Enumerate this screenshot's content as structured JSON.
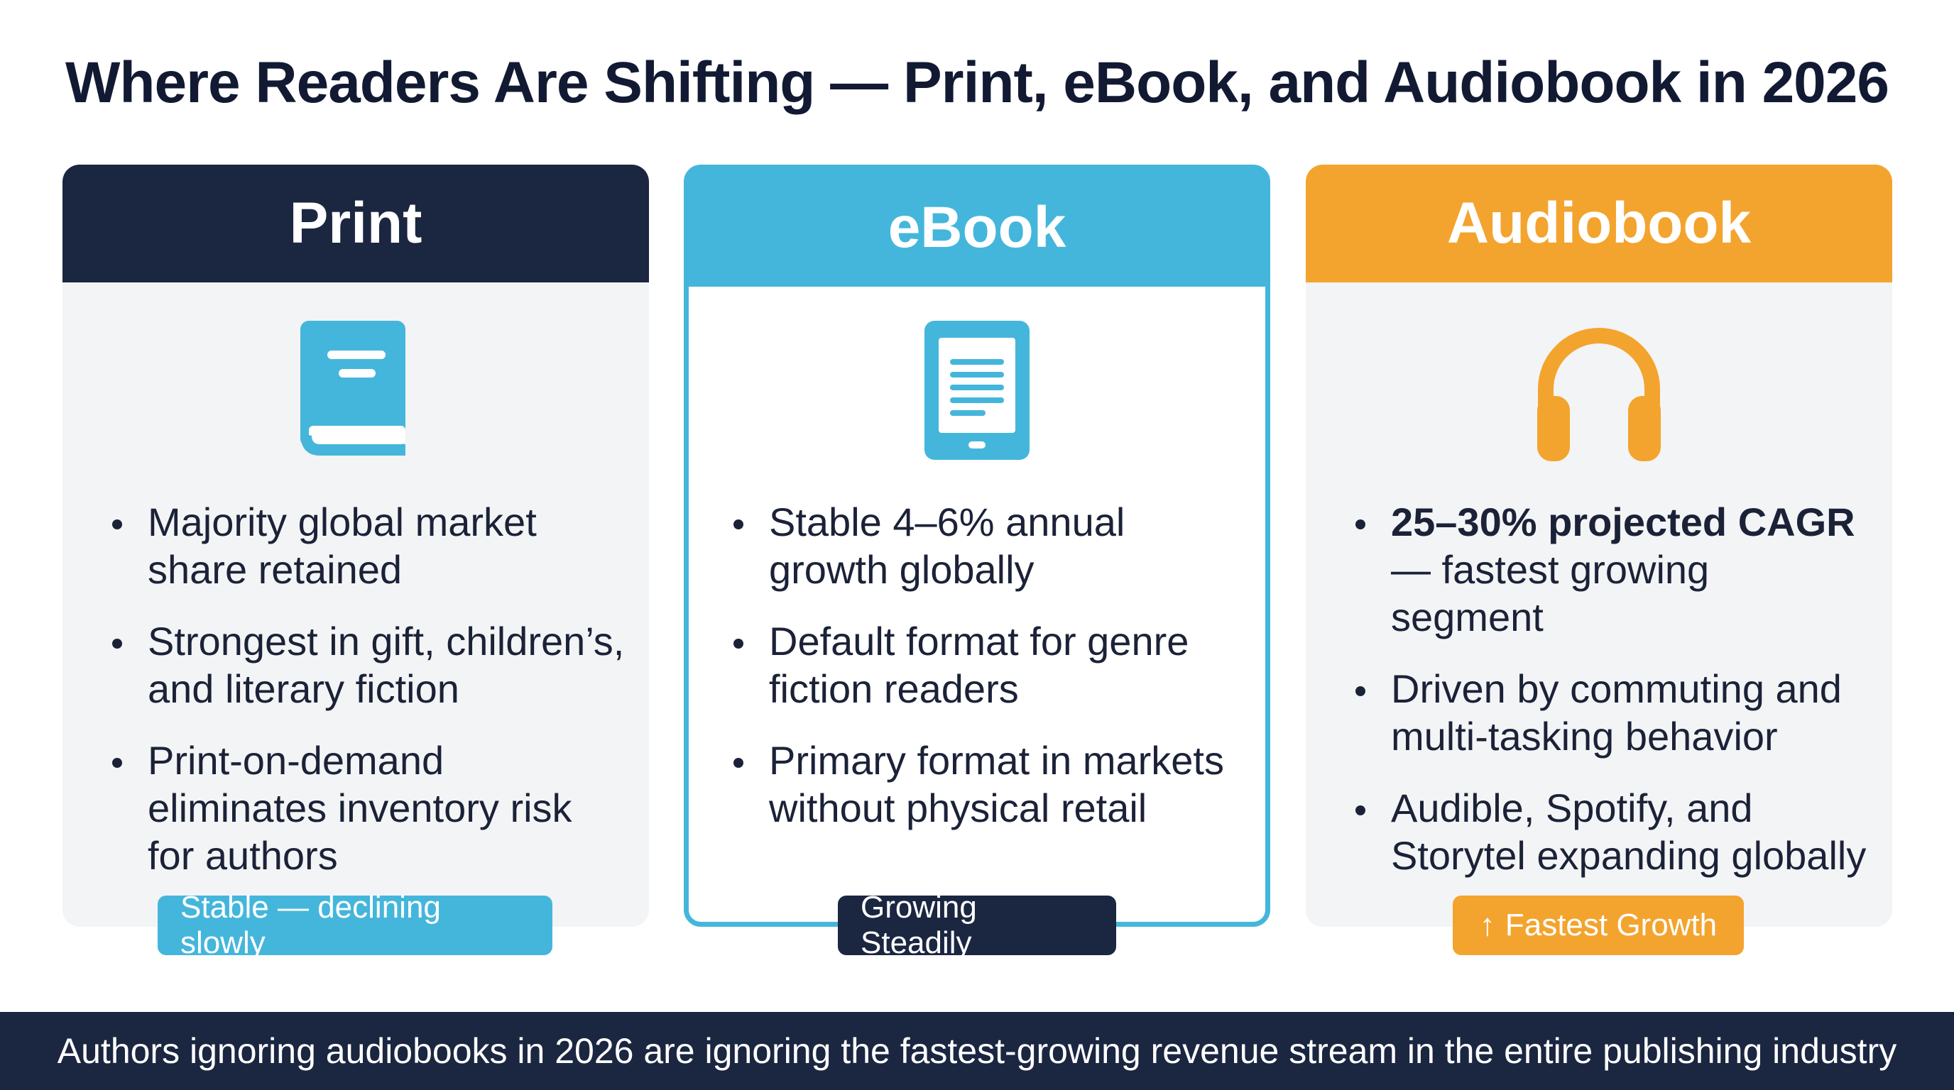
{
  "title": "Where Readers Are Shifting — Print, eBook, and Audiobook in 2026",
  "colors": {
    "navy": "#1b2641",
    "blue": "#45b6db",
    "orange": "#f3a42e"
  },
  "cards": {
    "print": {
      "heading": "Print",
      "icon": "book-icon",
      "bullets": [
        "Majority global market share retained",
        "Strongest in gift, children’s, and literary fiction",
        "Print-on-demand eliminates inventory risk for authors"
      ],
      "badge": "Stable — declining slowly"
    },
    "ebook": {
      "heading": "eBook",
      "icon": "ereader-icon",
      "bullets": [
        "Stable 4–6% annual growth globally",
        "Default format for genre fiction readers",
        "Primary format in markets without physical retail"
      ],
      "badge": "Growing Steadily"
    },
    "audiobook": {
      "heading": "Audiobook",
      "icon": "headphones-icon",
      "bullets": [
        {
          "bold": "25–30% projected CAGR",
          "rest": " — fastest growing segment"
        },
        "Driven by commuting and multi-tasking behavior",
        "Audible, Spotify, and Storytel expanding globally"
      ],
      "badge_arrow": "↑",
      "badge": "Fastest Growth"
    }
  },
  "footer": "Authors ignoring audiobooks in 2026 are ignoring the fastest-growing revenue stream in the entire publishing industry"
}
